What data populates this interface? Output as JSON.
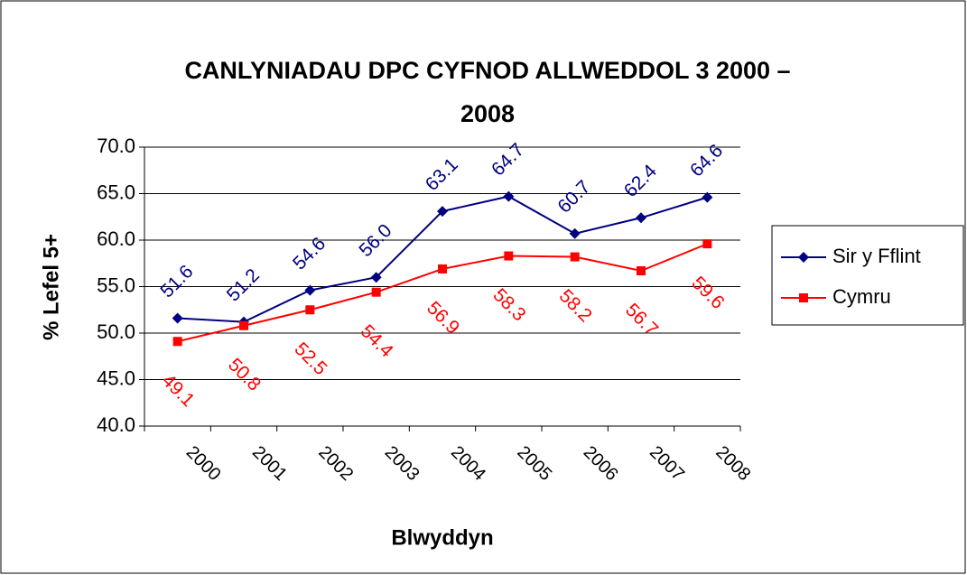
{
  "chart_data": {
    "type": "line",
    "title": [
      "CANLYNIADAU DPC CYFNOD ALLWEDDOL 3 2000 –",
      "2008"
    ],
    "x_label": "Blwyddyn",
    "y_label": "% Lefel 5+",
    "categories": [
      "2000",
      "2001",
      "2002",
      "2003",
      "2004",
      "2005",
      "2006",
      "2007",
      "2008"
    ],
    "series": [
      {
        "name": "Sir y Fflint",
        "color": "#000080",
        "marker": "diamond",
        "values": [
          51.6,
          51.2,
          54.6,
          56.0,
          63.1,
          64.7,
          60.7,
          62.4,
          64.6
        ],
        "value_labels": [
          "51.6",
          "51.2",
          "54.6",
          "56.0",
          "63.1",
          "64.7",
          "60.7",
          "62.4",
          "64.6"
        ]
      },
      {
        "name": "Cymru",
        "color": "#ff0000",
        "marker": "square",
        "values": [
          49.1,
          50.8,
          52.5,
          54.4,
          56.9,
          58.3,
          58.2,
          56.7,
          59.6
        ],
        "value_labels": [
          "49.1",
          "50.8",
          "52.5",
          "54.4",
          "56.9",
          "58.3",
          "58.2",
          "56.7",
          "59.6"
        ]
      }
    ],
    "ylim": [
      40,
      70
    ],
    "yticks": [
      {
        "value": 40,
        "label": "40.0"
      },
      {
        "value": 45,
        "label": "45.0"
      },
      {
        "value": 50,
        "label": "50.0"
      },
      {
        "value": 55,
        "label": "55.0"
      },
      {
        "value": 60,
        "label": "60.0"
      },
      {
        "value": 65,
        "label": "65.0"
      },
      {
        "value": 70,
        "label": "70.0"
      }
    ],
    "grid": true,
    "legend": "right"
  }
}
